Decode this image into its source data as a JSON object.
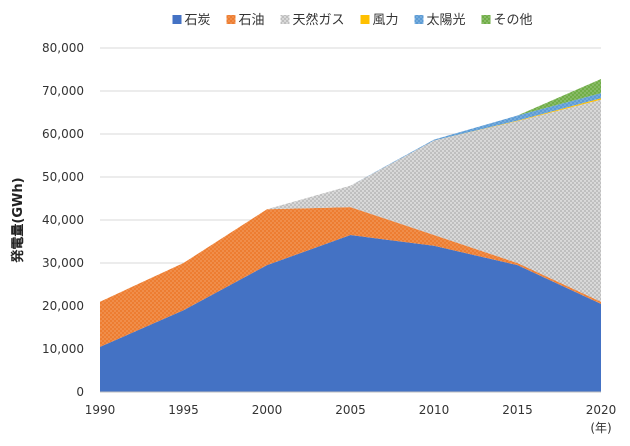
{
  "chart_data": {
    "type": "area",
    "stacked": true,
    "x": [
      1990,
      1995,
      2000,
      2005,
      2010,
      2015,
      2020
    ],
    "xlabel_unit": "(年)",
    "ylabel": "発電量(GWh)",
    "ylim": [
      0,
      80000
    ],
    "yticks": [
      "0",
      "10,000",
      "20,000",
      "30,000",
      "40,000",
      "50,000",
      "60,000",
      "70,000",
      "80,000"
    ],
    "xticks": [
      "1990",
      "1995",
      "2000",
      "2005",
      "2010",
      "2015",
      "2020"
    ],
    "legend_position": "top",
    "grid": true,
    "series": [
      {
        "name": "石炭",
        "color": "#4472C4",
        "values": [
          10500,
          19000,
          29500,
          36500,
          34000,
          29500,
          20500
        ]
      },
      {
        "name": "石油",
        "color": "#ED7D31",
        "values": [
          10500,
          11000,
          13000,
          6500,
          2500,
          500,
          500
        ]
      },
      {
        "name": "天然ガス",
        "color": "#BFBFBF",
        "values": [
          0,
          0,
          0,
          5000,
          22000,
          33000,
          47000
        ]
      },
      {
        "name": "風力",
        "color": "#FFC000",
        "values": [
          0,
          0,
          0,
          0,
          0,
          100,
          300
        ]
      },
      {
        "name": "太陽光",
        "color": "#5B9BD5",
        "values": [
          0,
          0,
          0,
          0,
          200,
          1200,
          1200
        ]
      },
      {
        "name": "その他",
        "color": "#70AD47",
        "values": [
          0,
          0,
          0,
          0,
          0,
          0,
          3300
        ]
      }
    ]
  }
}
